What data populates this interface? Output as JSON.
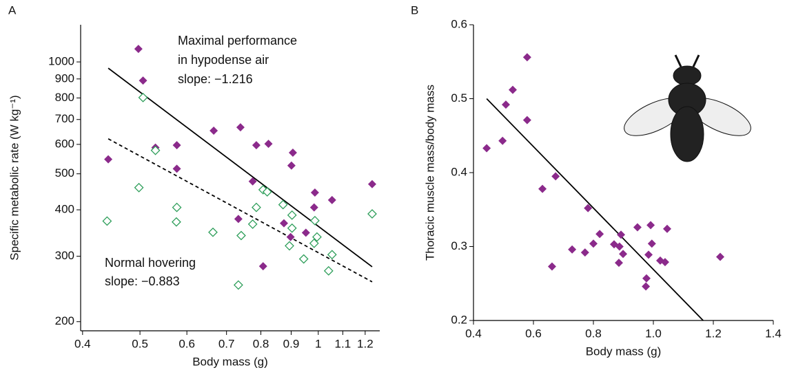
{
  "chart_data": [
    {
      "type": "scatter",
      "panel_label": "A",
      "xlabel": "Body mass (g)",
      "ylabel": "Specific metabolic rate (W kg⁻¹)",
      "xscale": "log",
      "yscale": "log",
      "xlim": [
        0.397,
        1.27
      ],
      "ylim": [
        189,
        1259
      ],
      "xticks": [
        0.4,
        0.5,
        0.6,
        0.7,
        0.8,
        0.9,
        1,
        1.1,
        1.2
      ],
      "yticks": [
        200,
        300,
        400,
        500,
        600,
        700,
        800,
        900,
        1000
      ],
      "annotations": [
        "Maximal performance",
        "in hypodense air",
        "slope: −1.216",
        "Normal hovering",
        "slope: −0.883"
      ],
      "series": [
        {
          "color": "#8b2a8b",
          "marker": "filled",
          "x": [
            0.442,
            0.497,
            0.506,
            0.531,
            0.577,
            0.577,
            0.666,
            0.739,
            0.786,
            0.824,
            0.906,
            0.901,
            0.775,
            0.733,
            0.875,
            0.898,
            0.807,
            0.953,
            0.987,
            0.984,
            1.055,
            1.233
          ],
          "values": [
            547,
            1084,
            891,
            588,
            597,
            516,
            653,
            667,
            597,
            602,
            570,
            526,
            477,
            378,
            368,
            338,
            282,
            347,
            445,
            406,
            425,
            469
          ]
        },
        {
          "color": "#2e9e5a",
          "marker": "open",
          "x": [
            0.44,
            0.498,
            0.506,
            0.531,
            0.577,
            0.576,
            0.664,
            0.741,
            0.733,
            0.786,
            0.775,
            0.807,
            0.82,
            0.872,
            0.903,
            0.903,
            0.894,
            0.987,
            0.995,
            0.984,
            0.945,
            1.055,
            1.041,
            1.233
          ],
          "values": [
            373,
            459,
            802,
            578,
            406,
            371,
            348,
            341,
            251,
            406,
            366,
            453,
            447,
            413,
            387,
            357,
            320,
            374,
            338,
            325,
            295,
            303,
            274,
            390
          ]
        }
      ],
      "lines": [
        {
          "color": "#000000",
          "dash": false,
          "x": [
            0.442,
            1.233
          ],
          "values": [
            962,
            281
          ]
        },
        {
          "color": "#000000",
          "dash": true,
          "x": [
            0.442,
            1.233
          ],
          "values": [
            621,
            256
          ]
        }
      ]
    },
    {
      "type": "scatter",
      "panel_label": "B",
      "xlabel": "Body mass (g)",
      "ylabel": "Thoracic muscle mass/body mass",
      "xscale": "linear",
      "yscale": "linear",
      "xlim": [
        0.4,
        1.4
      ],
      "ylim": [
        0.2,
        0.6
      ],
      "xticks": [
        0.4,
        0.6,
        0.8,
        {
          "value": 1,
          "label": "1.0"
        },
        1.2,
        1.4
      ],
      "yticks": [
        0.2,
        0.3,
        0.4,
        0.5,
        0.6
      ],
      "series": [
        {
          "color": "#8b2a8b",
          "marker": "filled",
          "x": [
            0.444,
            0.497,
            0.508,
            0.531,
            0.579,
            0.579,
            0.63,
            0.674,
            0.662,
            0.729,
            0.772,
            0.782,
            0.8,
            0.821,
            0.869,
            0.887,
            0.892,
            0.899,
            0.885,
            0.947,
            0.991,
            0.995,
            0.984,
            0.977,
            0.975,
            1.023,
            1.039,
            1.046,
            1.223
          ],
          "values": [
            0.433,
            0.443,
            0.492,
            0.512,
            0.556,
            0.471,
            0.378,
            0.395,
            0.273,
            0.296,
            0.292,
            0.352,
            0.304,
            0.317,
            0.303,
            0.3,
            0.316,
            0.29,
            0.278,
            0.326,
            0.329,
            0.304,
            0.289,
            0.257,
            0.246,
            0.281,
            0.279,
            0.324,
            0.286
          ]
        }
      ],
      "lines": [
        {
          "color": "#000000",
          "dash": false,
          "x": [
            0.444,
            1.166
          ],
          "values": [
            0.5,
            0.2
          ]
        }
      ]
    }
  ]
}
